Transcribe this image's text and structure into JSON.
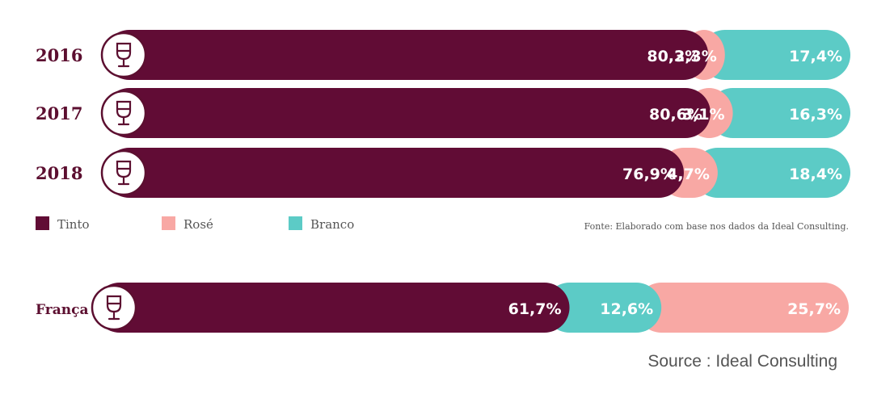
{
  "colors": {
    "tinto": "#610c35",
    "rose": "#f8a8a4",
    "branco": "#5ccbc6",
    "label": "#5c0f30"
  },
  "legend": [
    {
      "name": "Tinto",
      "color_key": "tinto"
    },
    {
      "name": "Rosé",
      "color_key": "rose"
    },
    {
      "name": "Branco",
      "color_key": "branco"
    }
  ],
  "source_note": "Fonte: Elaborado com base nos dados da Ideal Consulting.",
  "footer_source": "Source : Ideal Consulting",
  "icon": "wine-glass-icon",
  "chart_data": {
    "type": "bar",
    "orientation": "horizontal",
    "stacked": true,
    "normalized_to_100": true,
    "rows": [
      {
        "label": "2016",
        "segments": [
          {
            "name": "Tinto",
            "value": 80.3,
            "text": "80,3%"
          },
          {
            "name": "Rosé",
            "value": 2.3,
            "text": "2,3%"
          },
          {
            "name": "Branco",
            "value": 17.4,
            "text": "17,4%"
          }
        ]
      },
      {
        "label": "2017",
        "segments": [
          {
            "name": "Tinto",
            "value": 80.6,
            "text": "80,6%"
          },
          {
            "name": "Rosé",
            "value": 3.1,
            "text": "3,1%"
          },
          {
            "name": "Branco",
            "value": 16.3,
            "text": "16,3%"
          }
        ]
      },
      {
        "label": "2018",
        "segments": [
          {
            "name": "Tinto",
            "value": 76.9,
            "text": "76,9%"
          },
          {
            "name": "Rosé",
            "value": 4.7,
            "text": "4,7%"
          },
          {
            "name": "Branco",
            "value": 18.4,
            "text": "18,4%"
          }
        ]
      },
      {
        "label": "França",
        "segments": [
          {
            "name": "Tinto",
            "value": 61.7,
            "text": "61,7%"
          },
          {
            "name": "Branco",
            "value": 12.6,
            "text": "12,6%"
          },
          {
            "name": "Rosé",
            "value": 25.7,
            "text": "25,7%"
          }
        ]
      }
    ]
  }
}
